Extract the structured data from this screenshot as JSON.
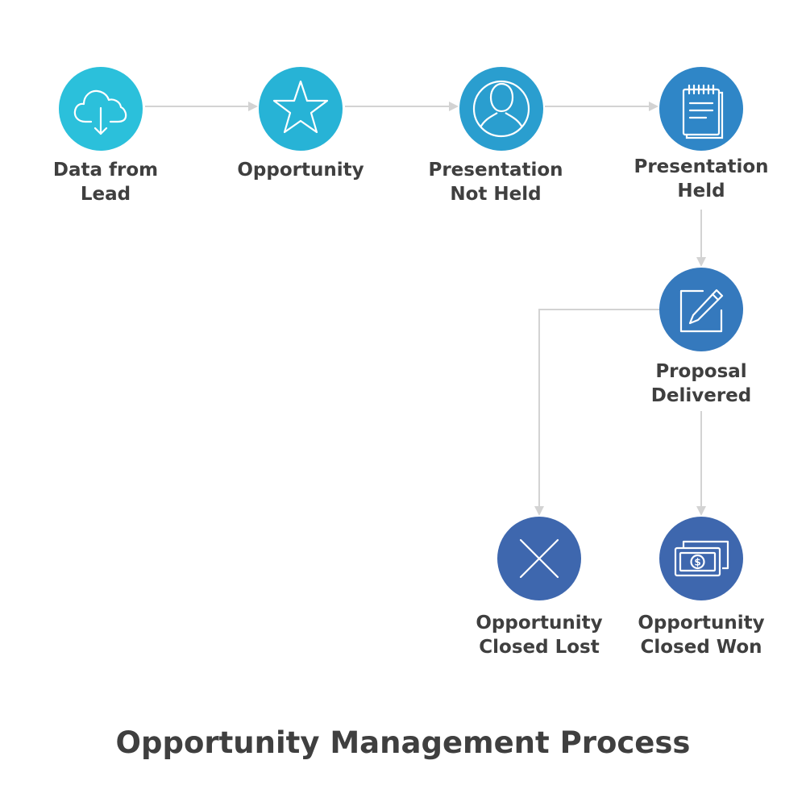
{
  "title": "Opportunity Management Process",
  "colors": {
    "connector": "#d3d3d3",
    "node_1": "#2bc0db",
    "node_2": "#27b3d6",
    "node_3": "#2a9ecf",
    "node_4": "#2f86c7",
    "node_5": "#3579bd",
    "node_6": "#3e67ae",
    "node_7": "#3e67ae",
    "icon_stroke": "#ffffff",
    "text": "#3f3f3f"
  },
  "nodes": {
    "data_from_lead": {
      "line1": "Data from",
      "line2": "Lead",
      "icon": "cloud-download-icon"
    },
    "opportunity": {
      "line1": "Opportunity",
      "icon": "star-icon"
    },
    "presentation_not_held": {
      "line1": "Presentation",
      "line2": "Not Held",
      "icon": "person-icon"
    },
    "presentation_held": {
      "line1": "Presentation",
      "line2": "Held",
      "icon": "notepad-icon"
    },
    "proposal_delivered": {
      "line1": "Proposal",
      "line2": "Delivered",
      "icon": "edit-pencil-icon"
    },
    "closed_lost": {
      "line1": "Opportunity",
      "line2": "Closed Lost",
      "icon": "close-x-icon"
    },
    "closed_won": {
      "line1": "Opportunity",
      "line2": "Closed Won",
      "icon": "money-bills-icon"
    }
  }
}
